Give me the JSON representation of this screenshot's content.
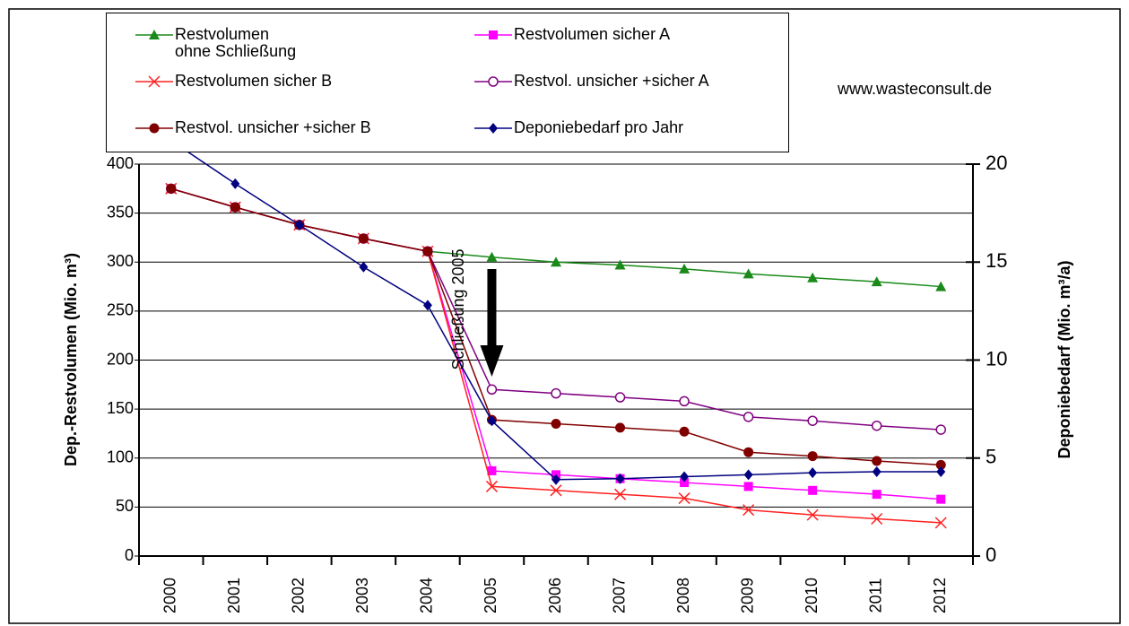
{
  "chart_data": {
    "type": "line",
    "categories": [
      "2000",
      "2001",
      "2002",
      "2003",
      "2004",
      "2005",
      "2006",
      "2007",
      "2008",
      "2009",
      "2010",
      "2011",
      "2012"
    ],
    "series": [
      {
        "name": "Restvolumen ohne Schließung",
        "color": "#1a8a1a",
        "marker": "triangle",
        "values": [
          375,
          356,
          338,
          324,
          311,
          305,
          300,
          297,
          293,
          288,
          284,
          280,
          275
        ]
      },
      {
        "name": "Restvolumen sicher  A",
        "color": "#ff00ff",
        "marker": "square",
        "values": [
          375,
          356,
          338,
          324,
          311,
          87,
          83,
          79,
          75,
          71,
          67,
          63,
          58
        ]
      },
      {
        "name": "Restvolumen sicher B",
        "color": "#ff2020",
        "marker": "x",
        "values": [
          375,
          356,
          338,
          324,
          311,
          71,
          67,
          63,
          59,
          47,
          42,
          38,
          34
        ]
      },
      {
        "name": "Restvol. unsicher +sicher A",
        "color": "#800080",
        "marker": "open-circle",
        "values": [
          375,
          356,
          338,
          324,
          311,
          170,
          166,
          162,
          158,
          142,
          138,
          133,
          129
        ]
      },
      {
        "name": "Restvol. unsicher +sicher B",
        "color": "#800000",
        "marker": "circle",
        "values": [
          375,
          356,
          338,
          324,
          311,
          139,
          135,
          131,
          127,
          106,
          102,
          97,
          93
        ]
      },
      {
        "name": "Deponiebedarf pro Jahr",
        "color": "#000080",
        "marker": "diamond",
        "axis": "y2",
        "values": [
          21.2,
          19.0,
          16.9,
          14.75,
          12.8,
          6.9,
          3.9,
          3.95,
          4.05,
          4.15,
          4.25,
          4.3,
          4.3
        ]
      }
    ],
    "ylabel": "Dep.-Restvolumen  (Mio. m³)",
    "y2label": "Deponiebedarf (Mio. m³/a)",
    "ylim": [
      0,
      400
    ],
    "yticks": [
      0,
      50,
      100,
      150,
      200,
      250,
      300,
      350,
      400
    ],
    "y2lim": [
      0,
      20
    ],
    "y2ticks": [
      0,
      5,
      10,
      15,
      20
    ],
    "grid": true,
    "annotations": [
      "Schließung 2005",
      "www.wasteconsult.de"
    ]
  }
}
